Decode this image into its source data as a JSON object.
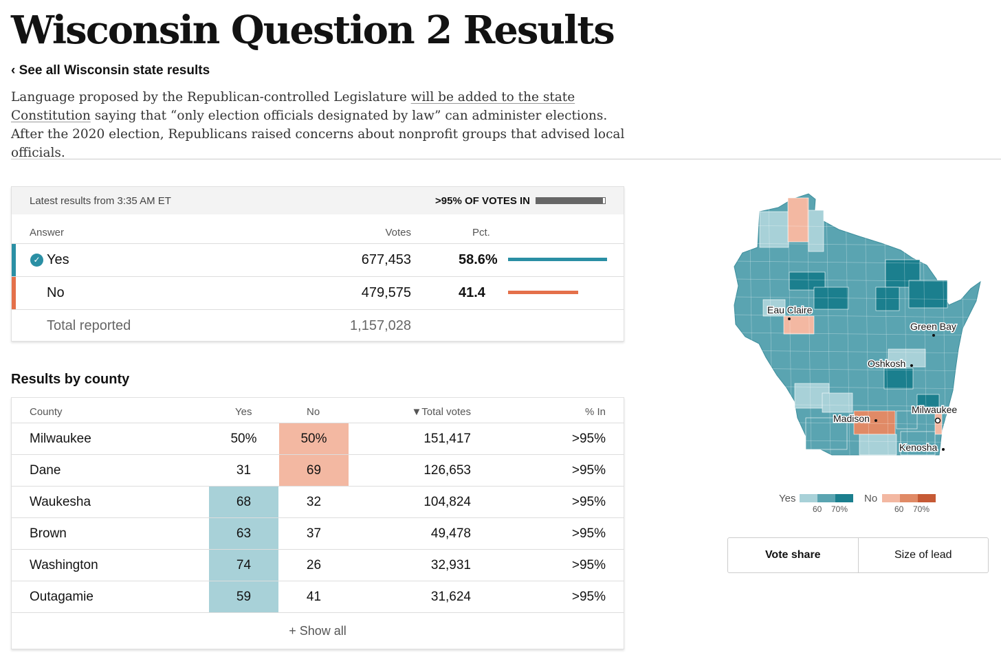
{
  "page": {
    "title": "Wisconsin Question 2 Results",
    "back_link": "‹ See all Wisconsin state results",
    "desc_part1": "Language proposed by the Republican-controlled Legislature ",
    "desc_link": "will be added to the state Constitution",
    "desc_part2": " saying that “only election officials designated by law” can administer elections. After the 2020 election, Republicans raised concerns about nonprofit groups that advised local officials."
  },
  "summary": {
    "updated": "Latest results from 3:35 AM ET",
    "reporting_label": ">95% OF VOTES IN",
    "reporting_fraction": 0.97,
    "col_answer": "Answer",
    "col_votes": "Votes",
    "col_pct": "Pct.",
    "yes": {
      "label": "Yes",
      "votes": "677,453",
      "pct": "58.6%",
      "share": 0.586,
      "color": "#2a8fa4"
    },
    "no": {
      "label": "No",
      "votes": "479,575",
      "pct": "41.4",
      "share": 0.414,
      "color": "#e4704a"
    },
    "total_label": "Total reported",
    "total_votes": "1,157,028"
  },
  "county": {
    "title": "Results by county",
    "headers": {
      "county": "County",
      "yes": "Yes",
      "no": "No",
      "total": "▼Total votes",
      "in": "% In"
    },
    "rows": [
      {
        "name": "Milwaukee",
        "yes": "50%",
        "no": "50%",
        "total": "151,417",
        "in": ">95%",
        "winner": "no"
      },
      {
        "name": "Dane",
        "yes": "31",
        "no": "69",
        "total": "126,653",
        "in": ">95%",
        "winner": "no"
      },
      {
        "name": "Waukesha",
        "yes": "68",
        "no": "32",
        "total": "104,824",
        "in": ">95%",
        "winner": "yes"
      },
      {
        "name": "Brown",
        "yes": "63",
        "no": "37",
        "total": "49,478",
        "in": ">95%",
        "winner": "yes"
      },
      {
        "name": "Washington",
        "yes": "74",
        "no": "26",
        "total": "32,931",
        "in": ">95%",
        "winner": "yes"
      },
      {
        "name": "Outagamie",
        "yes": "59",
        "no": "41",
        "total": "31,624",
        "in": ">95%",
        "winner": "yes"
      }
    ],
    "show_all": "+ Show all",
    "colors": {
      "yes_cell": "#a8d1d8",
      "no_cell": "#f3b8a2"
    }
  },
  "map": {
    "cities": [
      "Eau Claire",
      "Green Bay",
      "Oshkosh",
      "Madison",
      "Milwaukee",
      "Kenosha"
    ],
    "colors": {
      "yes_light": "#a8d1d8",
      "yes_mid": "#5aa4b1",
      "yes_dark": "#1b7f8e",
      "no_light": "#f3b8a2",
      "no_mid": "#e08a66",
      "no_dark": "#c65a35"
    }
  },
  "legend": {
    "yes_label": "Yes",
    "no_label": "No",
    "tick_60": "60",
    "tick_70": "70%"
  },
  "toggle": {
    "vote_share": "Vote share",
    "size_of_lead": "Size of lead"
  }
}
